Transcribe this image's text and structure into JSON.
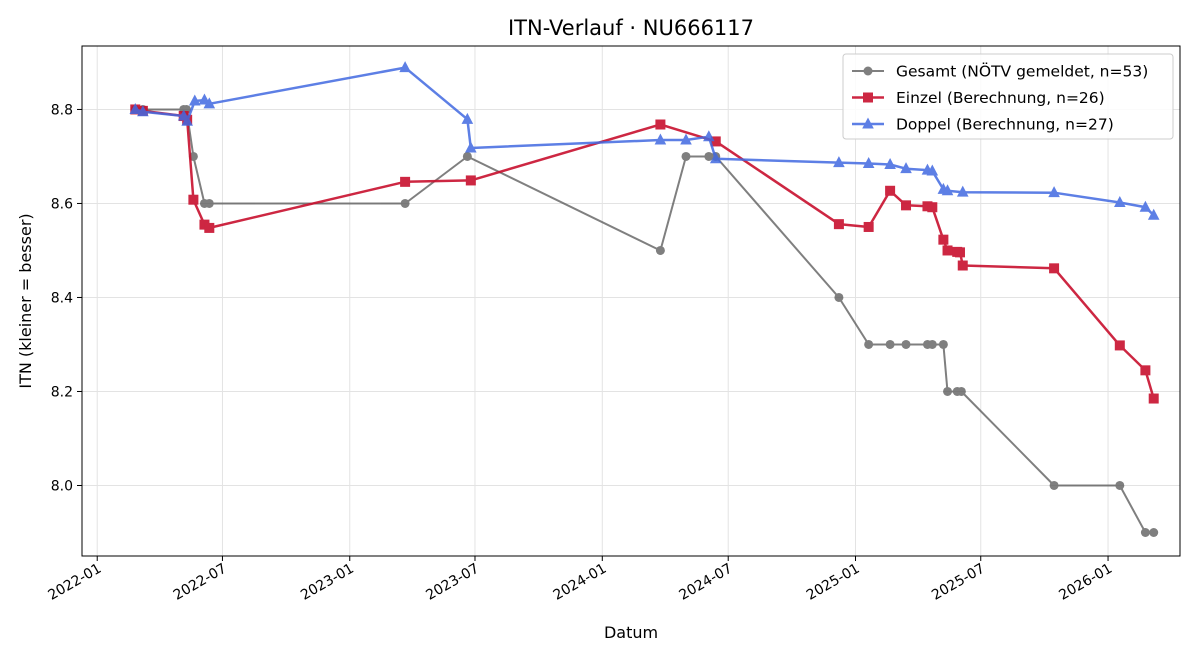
{
  "chart_data": {
    "type": "line",
    "title": "ITN-Verlauf · NU666117",
    "xlabel": "Datum",
    "ylabel": "ITN  (kleiner = besser)",
    "x_axis_type": "date",
    "xlim": [
      "2021-12-10",
      "2026-04-15"
    ],
    "ylim": [
      7.85,
      8.935
    ],
    "x_ticks": [
      "2022-01-01",
      "2022-07-01",
      "2023-01-01",
      "2023-07-01",
      "2024-01-01",
      "2024-07-01",
      "2025-01-01",
      "2025-07-01",
      "2026-01-01"
    ],
    "x_tick_labels": [
      "2022-01",
      "2022-07",
      "2023-01",
      "2023-07",
      "2024-01",
      "2024-07",
      "2025-01",
      "2025-07",
      "2026-01"
    ],
    "y_ticks": [
      8.0,
      8.2,
      8.4,
      8.6,
      8.8
    ],
    "y_tick_labels": [
      "8.0",
      "8.2",
      "8.4",
      "8.6",
      "8.8"
    ],
    "grid": true,
    "legend_position": "top-right",
    "series": [
      {
        "name": "Gesamt (NÖTV gemeldet, n=53)",
        "color": "#555555",
        "marker": "circle",
        "points": [
          {
            "x": "2022-02-25",
            "y": 8.8
          },
          {
            "x": "2022-03-08",
            "y": 8.8
          },
          {
            "x": "2022-05-06",
            "y": 8.8
          },
          {
            "x": "2022-05-10",
            "y": 8.8
          },
          {
            "x": "2022-05-20",
            "y": 8.7
          },
          {
            "x": "2022-06-05",
            "y": 8.6
          },
          {
            "x": "2022-06-12",
            "y": 8.6
          },
          {
            "x": "2023-03-22",
            "y": 8.6
          },
          {
            "x": "2023-06-20",
            "y": 8.7
          },
          {
            "x": "2024-03-25",
            "y": 8.5
          },
          {
            "x": "2024-05-01",
            "y": 8.7
          },
          {
            "x": "2024-06-03",
            "y": 8.7
          },
          {
            "x": "2024-06-13",
            "y": 8.7
          },
          {
            "x": "2024-12-08",
            "y": 8.4
          },
          {
            "x": "2025-01-20",
            "y": 8.3
          },
          {
            "x": "2025-02-20",
            "y": 8.3
          },
          {
            "x": "2025-03-15",
            "y": 8.3
          },
          {
            "x": "2025-04-15",
            "y": 8.3
          },
          {
            "x": "2025-04-22",
            "y": 8.3
          },
          {
            "x": "2025-05-08",
            "y": 8.3
          },
          {
            "x": "2025-05-14",
            "y": 8.2
          },
          {
            "x": "2025-05-28",
            "y": 8.2
          },
          {
            "x": "2025-06-03",
            "y": 8.2
          },
          {
            "x": "2025-10-15",
            "y": 8.0
          },
          {
            "x": "2026-01-18",
            "y": 8.0
          },
          {
            "x": "2026-02-24",
            "y": 7.9
          },
          {
            "x": "2026-03-08",
            "y": 7.9
          }
        ]
      },
      {
        "name": "Einzel (Berechnung, n=26)",
        "color": "#c8102e",
        "marker": "square",
        "points": [
          {
            "x": "2022-02-25",
            "y": 8.8
          },
          {
            "x": "2022-03-08",
            "y": 8.797
          },
          {
            "x": "2022-05-06",
            "y": 8.786
          },
          {
            "x": "2022-05-11",
            "y": 8.778
          },
          {
            "x": "2022-05-20",
            "y": 8.608
          },
          {
            "x": "2022-06-05",
            "y": 8.555
          },
          {
            "x": "2022-06-12",
            "y": 8.548
          },
          {
            "x": "2023-03-22",
            "y": 8.646
          },
          {
            "x": "2023-06-25",
            "y": 8.649
          },
          {
            "x": "2024-03-25",
            "y": 8.768
          },
          {
            "x": "2024-06-13",
            "y": 8.732
          },
          {
            "x": "2024-12-08",
            "y": 8.556
          },
          {
            "x": "2025-01-20",
            "y": 8.55
          },
          {
            "x": "2025-02-20",
            "y": 8.627
          },
          {
            "x": "2025-03-15",
            "y": 8.596
          },
          {
            "x": "2025-04-15",
            "y": 8.594
          },
          {
            "x": "2025-04-22",
            "y": 8.592
          },
          {
            "x": "2025-05-08",
            "y": 8.523
          },
          {
            "x": "2025-05-14",
            "y": 8.5
          },
          {
            "x": "2025-05-28",
            "y": 8.497
          },
          {
            "x": "2025-06-01",
            "y": 8.496
          },
          {
            "x": "2025-06-05",
            "y": 8.468
          },
          {
            "x": "2025-10-15",
            "y": 8.462
          },
          {
            "x": "2026-01-18",
            "y": 8.298
          },
          {
            "x": "2026-02-24",
            "y": 8.245
          },
          {
            "x": "2026-03-08",
            "y": 8.185
          }
        ]
      },
      {
        "name": "Doppel (Berechnung, n=27)",
        "color": "#4169e1",
        "marker": "triangle",
        "points": [
          {
            "x": "2022-02-25",
            "y": 8.8
          },
          {
            "x": "2022-03-08",
            "y": 8.795
          },
          {
            "x": "2022-05-06",
            "y": 8.786
          },
          {
            "x": "2022-05-11",
            "y": 8.775
          },
          {
            "x": "2022-05-22",
            "y": 8.818
          },
          {
            "x": "2022-06-05",
            "y": 8.82
          },
          {
            "x": "2022-06-12",
            "y": 8.812
          },
          {
            "x": "2023-03-22",
            "y": 8.889
          },
          {
            "x": "2023-06-20",
            "y": 8.779
          },
          {
            "x": "2023-06-25",
            "y": 8.718
          },
          {
            "x": "2024-03-25",
            "y": 8.735
          },
          {
            "x": "2024-05-01",
            "y": 8.735
          },
          {
            "x": "2024-06-03",
            "y": 8.742
          },
          {
            "x": "2024-06-13",
            "y": 8.695
          },
          {
            "x": "2024-12-08",
            "y": 8.687
          },
          {
            "x": "2025-01-20",
            "y": 8.685
          },
          {
            "x": "2025-02-20",
            "y": 8.683
          },
          {
            "x": "2025-03-15",
            "y": 8.674
          },
          {
            "x": "2025-04-15",
            "y": 8.671
          },
          {
            "x": "2025-04-22",
            "y": 8.669
          },
          {
            "x": "2025-05-08",
            "y": 8.63
          },
          {
            "x": "2025-05-14",
            "y": 8.627
          },
          {
            "x": "2025-06-05",
            "y": 8.624
          },
          {
            "x": "2025-10-15",
            "y": 8.623
          },
          {
            "x": "2026-01-18",
            "y": 8.602
          },
          {
            "x": "2026-02-24",
            "y": 8.592
          },
          {
            "x": "2026-03-08",
            "y": 8.575
          }
        ]
      }
    ]
  }
}
